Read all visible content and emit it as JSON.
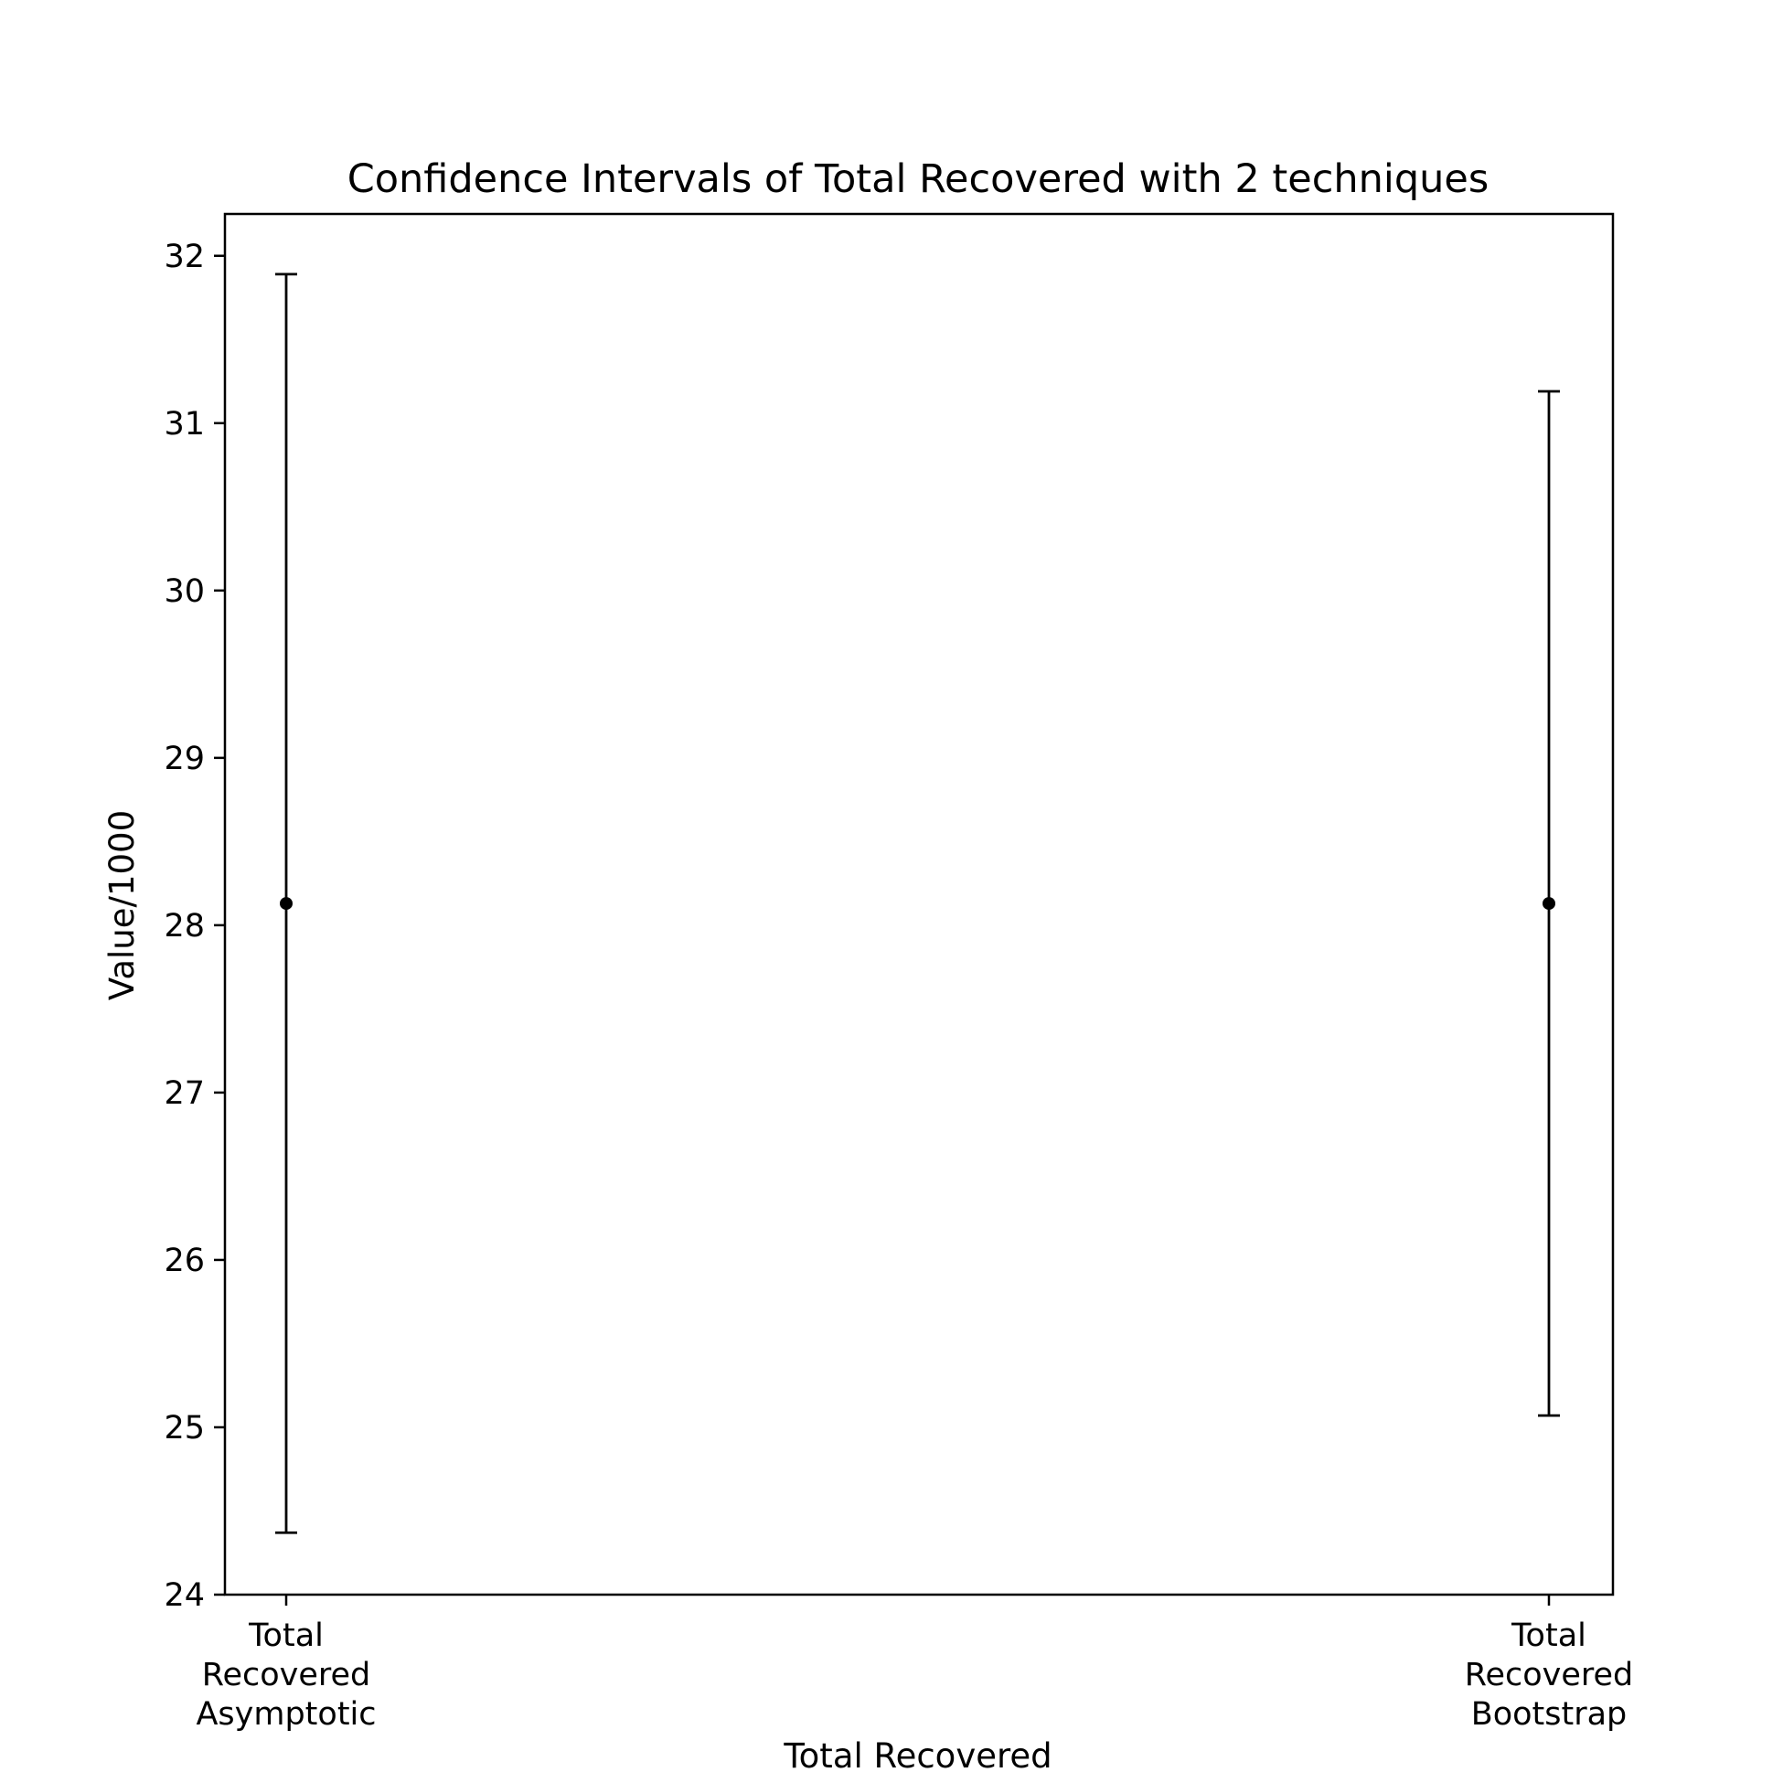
{
  "chart_data": {
    "type": "errorbar",
    "title": "Confidence Intervals of Total Recovered with 2 techniques",
    "xlabel": "Total Recovered",
    "ylabel": "Value/1000",
    "categories": [
      [
        "Total",
        "Recovered",
        "Asymptotic"
      ],
      [
        "Total",
        "Recovered",
        "Bootstrap"
      ]
    ],
    "points": [
      {
        "value": 28.13,
        "lower": 24.37,
        "upper": 31.89
      },
      {
        "value": 28.13,
        "lower": 25.07,
        "upper": 31.19
      }
    ],
    "ylim": [
      24,
      32.25
    ],
    "yticks": [
      24,
      25,
      26,
      27,
      28,
      29,
      30,
      31,
      32
    ],
    "grid": false,
    "legend": "none",
    "colors": {
      "line": "#000000",
      "background": "#ffffff"
    }
  }
}
